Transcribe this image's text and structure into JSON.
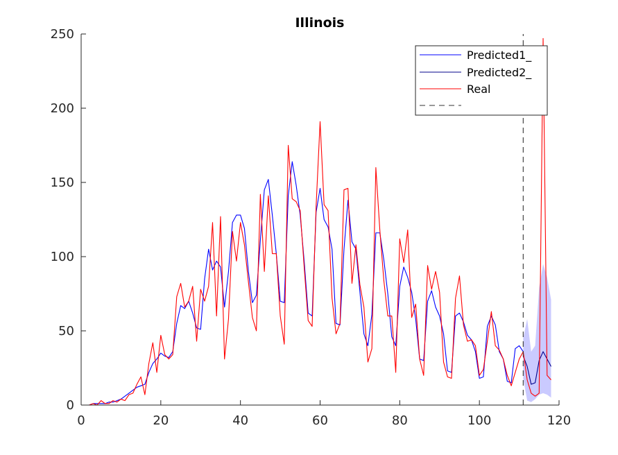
{
  "chart_data": {
    "type": "line",
    "title": "Illinois",
    "xlabel": "",
    "ylabel": "",
    "xlim": [
      0,
      120
    ],
    "ylim": [
      0,
      250
    ],
    "xticks": [
      0,
      20,
      40,
      60,
      80,
      100,
      120
    ],
    "yticks": [
      0,
      50,
      100,
      150,
      200,
      250
    ],
    "grid": false,
    "legend_position": "top-right",
    "forecast_start": 111,
    "series": [
      {
        "name": "Predicted1_",
        "color": "#0000ff",
        "x": [
          1,
          2,
          3,
          4,
          5,
          6,
          7,
          8,
          9,
          10,
          11,
          12,
          13,
          14,
          15,
          16,
          17,
          18,
          19,
          20,
          21,
          22,
          23,
          24,
          25,
          26,
          27,
          28,
          29,
          30,
          31,
          32,
          33,
          34,
          35,
          36,
          37,
          38,
          39,
          40,
          41,
          42,
          43,
          44,
          45,
          46,
          47,
          48,
          49,
          50,
          51,
          52,
          53,
          54,
          55,
          56,
          57,
          58,
          59,
          60,
          61,
          62,
          63,
          64,
          65,
          66,
          67,
          68,
          69,
          70,
          71,
          72,
          73,
          74,
          75,
          76,
          77,
          78,
          79,
          80,
          81,
          82,
          83,
          84,
          85,
          86,
          87,
          88,
          89,
          90,
          91,
          92,
          93,
          94,
          95,
          96,
          97,
          98,
          99,
          100,
          101,
          102,
          103,
          104,
          105,
          106,
          107,
          108,
          109,
          110,
          111
        ],
        "y": [
          0,
          0,
          1,
          1,
          1,
          1,
          2,
          2,
          3,
          4,
          6,
          8,
          10,
          12,
          13,
          14,
          22,
          28,
          31,
          35,
          33,
          32,
          36,
          55,
          67,
          65,
          70,
          62,
          52,
          51,
          85,
          105,
          91,
          97,
          93,
          66,
          90,
          123,
          128,
          128,
          119,
          90,
          69,
          74,
          111,
          145,
          152,
          128,
          102,
          70,
          69,
          141,
          164,
          148,
          128,
          97,
          62,
          60,
          130,
          146,
          125,
          120,
          105,
          55,
          54,
          105,
          138,
          110,
          105,
          76,
          48,
          40,
          61,
          116,
          116,
          98,
          75,
          46,
          40,
          80,
          93,
          86,
          76,
          58,
          31,
          30,
          70,
          77,
          66,
          60,
          48,
          23,
          22,
          60,
          62,
          56,
          47,
          44,
          36,
          18,
          19,
          53,
          60,
          54,
          36,
          31,
          16,
          15,
          38,
          40,
          36
        ],
        "lower": [],
        "upper": []
      },
      {
        "name": "Predicted2_",
        "color": "#00008b",
        "x": [
          111,
          112,
          113,
          114,
          115,
          116,
          117,
          118
        ],
        "y": [
          33,
          26,
          14,
          15,
          30,
          36,
          31,
          26
        ],
        "lower": [
          18,
          3,
          2,
          4,
          7,
          8,
          7,
          5
        ],
        "upper": [
          45,
          58,
          36,
          40,
          79,
          95,
          86,
          71
        ]
      },
      {
        "name": "Real",
        "color": "#ff0000",
        "x": [
          1,
          2,
          3,
          4,
          5,
          6,
          7,
          8,
          9,
          10,
          11,
          12,
          13,
          14,
          15,
          16,
          17,
          18,
          19,
          20,
          21,
          22,
          23,
          24,
          25,
          26,
          27,
          28,
          29,
          30,
          31,
          32,
          33,
          34,
          35,
          36,
          37,
          38,
          39,
          40,
          41,
          42,
          43,
          44,
          45,
          46,
          47,
          48,
          49,
          50,
          51,
          52,
          53,
          54,
          55,
          56,
          57,
          58,
          59,
          60,
          61,
          62,
          63,
          64,
          65,
          66,
          67,
          68,
          69,
          70,
          71,
          72,
          73,
          74,
          75,
          76,
          77,
          78,
          79,
          80,
          81,
          82,
          83,
          84,
          85,
          86,
          87,
          88,
          89,
          90,
          91,
          92,
          93,
          94,
          95,
          96,
          97,
          98,
          99,
          100,
          101,
          102,
          103,
          104,
          105,
          106,
          107,
          108,
          109,
          110,
          111,
          112,
          113,
          114,
          115,
          116,
          117,
          118
        ],
        "y": [
          0,
          0,
          1,
          0,
          3,
          1,
          1,
          3,
          2,
          4,
          3,
          7,
          8,
          14,
          19,
          7,
          28,
          42,
          22,
          47,
          34,
          31,
          34,
          73,
          82,
          66,
          70,
          80,
          43,
          78,
          70,
          80,
          123,
          60,
          127,
          31,
          58,
          117,
          97,
          123,
          108,
          83,
          59,
          50,
          142,
          90,
          141,
          102,
          102,
          60,
          41,
          175,
          139,
          137,
          131,
          93,
          57,
          53,
          134,
          191,
          135,
          131,
          72,
          48,
          55,
          145,
          146,
          82,
          108,
          81,
          66,
          29,
          38,
          160,
          118,
          84,
          60,
          60,
          22,
          112,
          96,
          118,
          59,
          68,
          31,
          20,
          94,
          78,
          90,
          76,
          29,
          19,
          18,
          72,
          87,
          54,
          43,
          44,
          40,
          20,
          24,
          43,
          63,
          40,
          37,
          31,
          20,
          13,
          22,
          31,
          36,
          17,
          8,
          6,
          8,
          247,
          20,
          17
        ]
      },
      {
        "name": "",
        "color": "#333333",
        "style": "dashed",
        "x": [
          111,
          111
        ],
        "y": [
          0,
          250
        ]
      }
    ]
  }
}
